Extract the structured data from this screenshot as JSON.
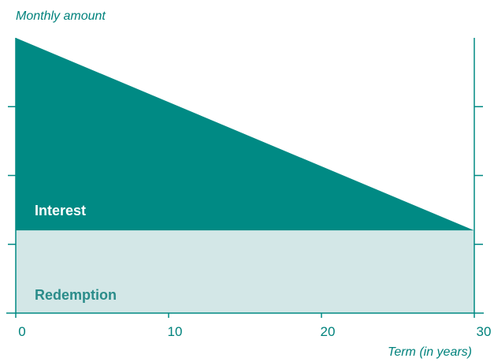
{
  "chart_data": {
    "type": "area",
    "stacked": true,
    "xlabel": "Term (in years)",
    "ylabel": "Monthly amount",
    "xlim": [
      0,
      30
    ],
    "ylim": [
      0,
      4
    ],
    "x_ticks": [
      "0",
      "10",
      "20",
      "30"
    ],
    "y_tick_values": [
      1,
      2,
      3
    ],
    "y_tick_labels_shown": false,
    "series": [
      {
        "name": "Redemption",
        "x": [
          0,
          30
        ],
        "values": [
          1.2,
          1.2
        ],
        "color": "#d3e7e7",
        "label_color": "#2a8c8a"
      },
      {
        "name": "Interest",
        "x": [
          0,
          30
        ],
        "values": [
          2.8,
          0
        ],
        "color": "#008a84",
        "label_color": "#ffffff"
      }
    ],
    "grid": false,
    "axis_color": "#008a84",
    "label_color": "#00827c"
  }
}
